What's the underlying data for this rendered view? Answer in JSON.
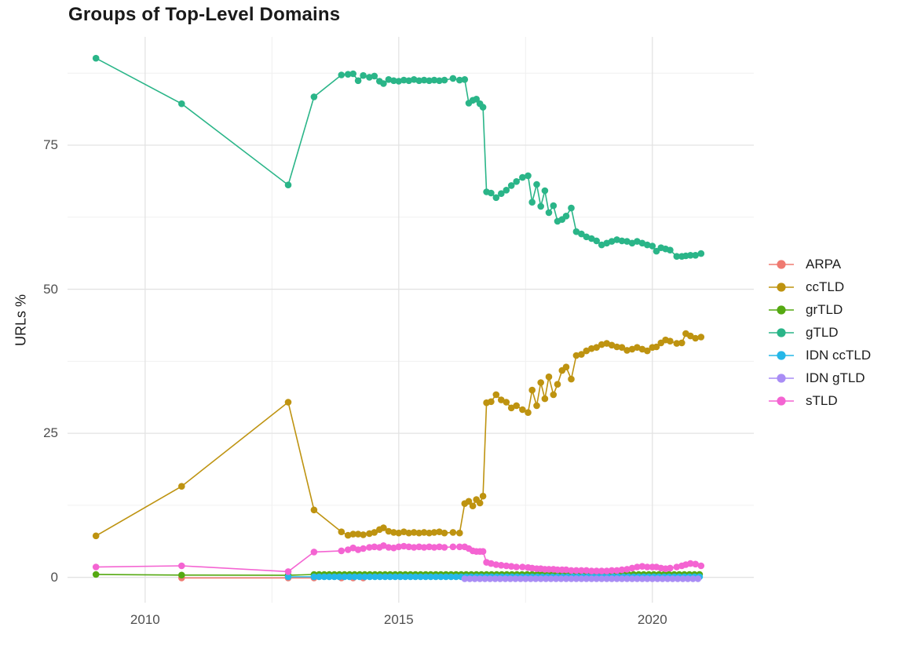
{
  "header": {
    "title": "Groups of Top-Level Domains"
  },
  "chart_data": {
    "type": "line",
    "title": "Groups of Top-Level Domains",
    "xlabel": "",
    "ylabel": "URLs %",
    "legend_position": "right",
    "grid": "on",
    "xlim": [
      2008.47,
      2022.0
    ],
    "ylim": [
      -4.4,
      93.8
    ],
    "x_ticks": [
      {
        "value": 2010,
        "label": "2010"
      },
      {
        "value": 2015,
        "label": "2015"
      },
      {
        "value": 2020,
        "label": "2020"
      }
    ],
    "y_ticks": [
      {
        "value": 0,
        "label": "0"
      },
      {
        "value": 25,
        "label": "25"
      },
      {
        "value": 50,
        "label": "50"
      },
      {
        "value": 75,
        "label": "75"
      }
    ],
    "minor_x": [
      2012.5,
      2017.5
    ],
    "minor_y": [
      12.5,
      37.5,
      62.5,
      87.5
    ],
    "series": [
      {
        "name": "ARPA",
        "color": "#EF7A71",
        "points": [
          [
            2010.72,
            -0.1
          ],
          [
            2012.82,
            -0.1
          ],
          [
            2013.33,
            -0.1
          ],
          [
            2013.87,
            -0.1
          ],
          [
            2014.1,
            -0.1
          ],
          [
            2014.3,
            -0.1
          ]
        ]
      },
      {
        "name": "ccTLD",
        "color": "#BE9310",
        "points": [
          [
            2009.03,
            7.2
          ],
          [
            2010.72,
            15.8
          ],
          [
            2012.82,
            30.4
          ],
          [
            2013.33,
            11.7
          ],
          [
            2013.87,
            7.9
          ],
          [
            2014.0,
            7.3
          ],
          [
            2014.1,
            7.5
          ],
          [
            2014.2,
            7.5
          ],
          [
            2014.3,
            7.4
          ],
          [
            2014.42,
            7.6
          ],
          [
            2014.52,
            7.8
          ],
          [
            2014.62,
            8.3
          ],
          [
            2014.7,
            8.6
          ],
          [
            2014.8,
            8.0
          ],
          [
            2014.9,
            7.8
          ],
          [
            2015.0,
            7.7
          ],
          [
            2015.1,
            7.9
          ],
          [
            2015.2,
            7.7
          ],
          [
            2015.3,
            7.8
          ],
          [
            2015.4,
            7.7
          ],
          [
            2015.5,
            7.8
          ],
          [
            2015.6,
            7.7
          ],
          [
            2015.7,
            7.8
          ],
          [
            2015.8,
            7.9
          ],
          [
            2015.9,
            7.7
          ],
          [
            2016.07,
            7.8
          ],
          [
            2016.2,
            7.7
          ],
          [
            2016.3,
            12.8
          ],
          [
            2016.38,
            13.2
          ],
          [
            2016.46,
            12.4
          ],
          [
            2016.53,
            13.5
          ],
          [
            2016.6,
            12.9
          ],
          [
            2016.66,
            14.1
          ],
          [
            2016.73,
            30.3
          ],
          [
            2016.82,
            30.5
          ],
          [
            2016.92,
            31.7
          ],
          [
            2017.02,
            30.8
          ],
          [
            2017.12,
            30.4
          ],
          [
            2017.22,
            29.4
          ],
          [
            2017.32,
            29.8
          ],
          [
            2017.44,
            29.1
          ],
          [
            2017.55,
            28.6
          ],
          [
            2017.63,
            32.5
          ],
          [
            2017.72,
            29.8
          ],
          [
            2017.8,
            33.8
          ],
          [
            2017.88,
            31.0
          ],
          [
            2017.96,
            34.8
          ],
          [
            2018.05,
            31.7
          ],
          [
            2018.13,
            33.5
          ],
          [
            2018.22,
            35.9
          ],
          [
            2018.3,
            36.5
          ],
          [
            2018.4,
            34.4
          ],
          [
            2018.5,
            38.5
          ],
          [
            2018.6,
            38.7
          ],
          [
            2018.7,
            39.3
          ],
          [
            2018.8,
            39.7
          ],
          [
            2018.9,
            39.9
          ],
          [
            2019.0,
            40.4
          ],
          [
            2019.1,
            40.6
          ],
          [
            2019.2,
            40.3
          ],
          [
            2019.3,
            40.0
          ],
          [
            2019.4,
            39.9
          ],
          [
            2019.5,
            39.4
          ],
          [
            2019.6,
            39.6
          ],
          [
            2019.7,
            39.9
          ],
          [
            2019.8,
            39.6
          ],
          [
            2019.9,
            39.3
          ],
          [
            2020.0,
            39.9
          ],
          [
            2020.08,
            40.0
          ],
          [
            2020.17,
            40.7
          ],
          [
            2020.26,
            41.2
          ],
          [
            2020.35,
            41.0
          ],
          [
            2020.48,
            40.6
          ],
          [
            2020.58,
            40.7
          ],
          [
            2020.66,
            42.3
          ],
          [
            2020.75,
            41.9
          ],
          [
            2020.85,
            41.5
          ],
          [
            2020.96,
            41.7
          ]
        ]
      },
      {
        "name": "grTLD",
        "color": "#55A912",
        "points": [
          [
            2009.03,
            0.5
          ],
          [
            2010.72,
            0.4
          ],
          [
            2012.82,
            0.35
          ]
        ],
        "flat": {
          "from": 2013.33,
          "to": 2020.96,
          "step": 0.1,
          "value": 0.5
        }
      },
      {
        "name": "gTLD",
        "color": "#2AB588",
        "points": [
          [
            2009.03,
            90.1
          ],
          [
            2010.72,
            82.2
          ],
          [
            2012.82,
            68.1
          ],
          [
            2013.33,
            83.4
          ],
          [
            2013.87,
            87.2
          ],
          [
            2014.0,
            87.3
          ],
          [
            2014.1,
            87.4
          ],
          [
            2014.2,
            86.2
          ],
          [
            2014.3,
            87.1
          ],
          [
            2014.42,
            86.8
          ],
          [
            2014.52,
            87.0
          ],
          [
            2014.62,
            86.1
          ],
          [
            2014.7,
            85.7
          ],
          [
            2014.8,
            86.4
          ],
          [
            2014.9,
            86.2
          ],
          [
            2015.0,
            86.1
          ],
          [
            2015.1,
            86.3
          ],
          [
            2015.2,
            86.2
          ],
          [
            2015.3,
            86.4
          ],
          [
            2015.4,
            86.2
          ],
          [
            2015.5,
            86.3
          ],
          [
            2015.6,
            86.2
          ],
          [
            2015.7,
            86.3
          ],
          [
            2015.8,
            86.2
          ],
          [
            2015.9,
            86.3
          ],
          [
            2016.07,
            86.6
          ],
          [
            2016.2,
            86.3
          ],
          [
            2016.3,
            86.4
          ],
          [
            2016.38,
            82.3
          ],
          [
            2016.46,
            82.8
          ],
          [
            2016.53,
            83.0
          ],
          [
            2016.6,
            82.2
          ],
          [
            2016.66,
            81.6
          ],
          [
            2016.73,
            66.9
          ],
          [
            2016.82,
            66.7
          ],
          [
            2016.92,
            65.9
          ],
          [
            2017.02,
            66.6
          ],
          [
            2017.12,
            67.2
          ],
          [
            2017.22,
            68.0
          ],
          [
            2017.32,
            68.7
          ],
          [
            2017.44,
            69.4
          ],
          [
            2017.55,
            69.7
          ],
          [
            2017.63,
            65.1
          ],
          [
            2017.72,
            68.2
          ],
          [
            2017.8,
            64.4
          ],
          [
            2017.88,
            67.1
          ],
          [
            2017.96,
            63.3
          ],
          [
            2018.05,
            64.5
          ],
          [
            2018.13,
            61.8
          ],
          [
            2018.22,
            62.1
          ],
          [
            2018.3,
            62.7
          ],
          [
            2018.4,
            64.1
          ],
          [
            2018.5,
            60.0
          ],
          [
            2018.6,
            59.6
          ],
          [
            2018.7,
            59.1
          ],
          [
            2018.8,
            58.8
          ],
          [
            2018.9,
            58.4
          ],
          [
            2019.0,
            57.7
          ],
          [
            2019.1,
            58.0
          ],
          [
            2019.2,
            58.3
          ],
          [
            2019.3,
            58.6
          ],
          [
            2019.4,
            58.4
          ],
          [
            2019.5,
            58.3
          ],
          [
            2019.6,
            58.0
          ],
          [
            2019.7,
            58.3
          ],
          [
            2019.8,
            58.0
          ],
          [
            2019.9,
            57.7
          ],
          [
            2020.0,
            57.5
          ],
          [
            2020.08,
            56.6
          ],
          [
            2020.17,
            57.2
          ],
          [
            2020.26,
            57.0
          ],
          [
            2020.35,
            56.8
          ],
          [
            2020.48,
            55.7
          ],
          [
            2020.58,
            55.7
          ],
          [
            2020.66,
            55.8
          ],
          [
            2020.75,
            55.9
          ],
          [
            2020.85,
            55.9
          ],
          [
            2020.96,
            56.2
          ]
        ]
      },
      {
        "name": "IDN ccTLD",
        "color": "#25B7E8",
        "points": [
          [
            2012.82,
            0.1
          ]
        ],
        "flat": {
          "from": 2013.33,
          "to": 2020.96,
          "step": 0.1,
          "value": 0.1
        }
      },
      {
        "name": "IDN gTLD",
        "color": "#A98DF5",
        "points": [],
        "flat": {
          "from": 2016.3,
          "to": 2020.96,
          "step": 0.1,
          "value": -0.25
        }
      },
      {
        "name": "sTLD",
        "color": "#F464D2",
        "points": [
          [
            2009.03,
            1.8
          ],
          [
            2010.72,
            2.0
          ],
          [
            2012.82,
            1.0
          ],
          [
            2013.33,
            4.4
          ],
          [
            2013.87,
            4.6
          ],
          [
            2014.0,
            4.8
          ],
          [
            2014.1,
            5.1
          ],
          [
            2014.2,
            4.8
          ],
          [
            2014.3,
            5.0
          ],
          [
            2014.42,
            5.2
          ],
          [
            2014.52,
            5.3
          ],
          [
            2014.62,
            5.2
          ],
          [
            2014.7,
            5.5
          ],
          [
            2014.8,
            5.2
          ],
          [
            2014.9,
            5.1
          ],
          [
            2015.0,
            5.3
          ],
          [
            2015.1,
            5.4
          ],
          [
            2015.2,
            5.3
          ],
          [
            2015.3,
            5.2
          ],
          [
            2015.4,
            5.3
          ],
          [
            2015.5,
            5.2
          ],
          [
            2015.6,
            5.3
          ],
          [
            2015.7,
            5.2
          ],
          [
            2015.8,
            5.3
          ],
          [
            2015.9,
            5.2
          ],
          [
            2016.07,
            5.3
          ],
          [
            2016.2,
            5.3
          ],
          [
            2016.3,
            5.3
          ],
          [
            2016.38,
            5.0
          ],
          [
            2016.46,
            4.6
          ],
          [
            2016.53,
            4.5
          ],
          [
            2016.6,
            4.5
          ],
          [
            2016.66,
            4.5
          ],
          [
            2016.73,
            2.6
          ],
          [
            2016.82,
            2.4
          ],
          [
            2016.92,
            2.2
          ],
          [
            2017.02,
            2.1
          ],
          [
            2017.12,
            2.0
          ],
          [
            2017.22,
            1.9
          ],
          [
            2017.32,
            1.8
          ],
          [
            2017.44,
            1.8
          ],
          [
            2017.55,
            1.7
          ],
          [
            2017.63,
            1.6
          ],
          [
            2017.72,
            1.5
          ],
          [
            2017.8,
            1.5
          ],
          [
            2017.88,
            1.4
          ],
          [
            2017.96,
            1.4
          ],
          [
            2018.05,
            1.4
          ],
          [
            2018.13,
            1.3
          ],
          [
            2018.22,
            1.3
          ],
          [
            2018.3,
            1.3
          ],
          [
            2018.4,
            1.2
          ],
          [
            2018.5,
            1.2
          ],
          [
            2018.6,
            1.2
          ],
          [
            2018.7,
            1.2
          ],
          [
            2018.8,
            1.1
          ],
          [
            2018.9,
            1.1
          ],
          [
            2019.0,
            1.1
          ],
          [
            2019.1,
            1.1
          ],
          [
            2019.2,
            1.2
          ],
          [
            2019.3,
            1.2
          ],
          [
            2019.4,
            1.3
          ],
          [
            2019.5,
            1.4
          ],
          [
            2019.6,
            1.6
          ],
          [
            2019.7,
            1.8
          ],
          [
            2019.8,
            1.9
          ],
          [
            2019.9,
            1.8
          ],
          [
            2020.0,
            1.8
          ],
          [
            2020.08,
            1.8
          ],
          [
            2020.17,
            1.6
          ],
          [
            2020.26,
            1.5
          ],
          [
            2020.35,
            1.6
          ],
          [
            2020.48,
            1.8
          ],
          [
            2020.58,
            2.0
          ],
          [
            2020.66,
            2.2
          ],
          [
            2020.75,
            2.4
          ],
          [
            2020.85,
            2.3
          ],
          [
            2020.96,
            2.0
          ]
        ]
      }
    ],
    "style": {
      "grid_major_color": "#E3E3E3",
      "grid_minor_color": "#F0F0F0",
      "background": "#FFFFFF",
      "point_radius": 4.3,
      "line_width": 1.6
    }
  }
}
